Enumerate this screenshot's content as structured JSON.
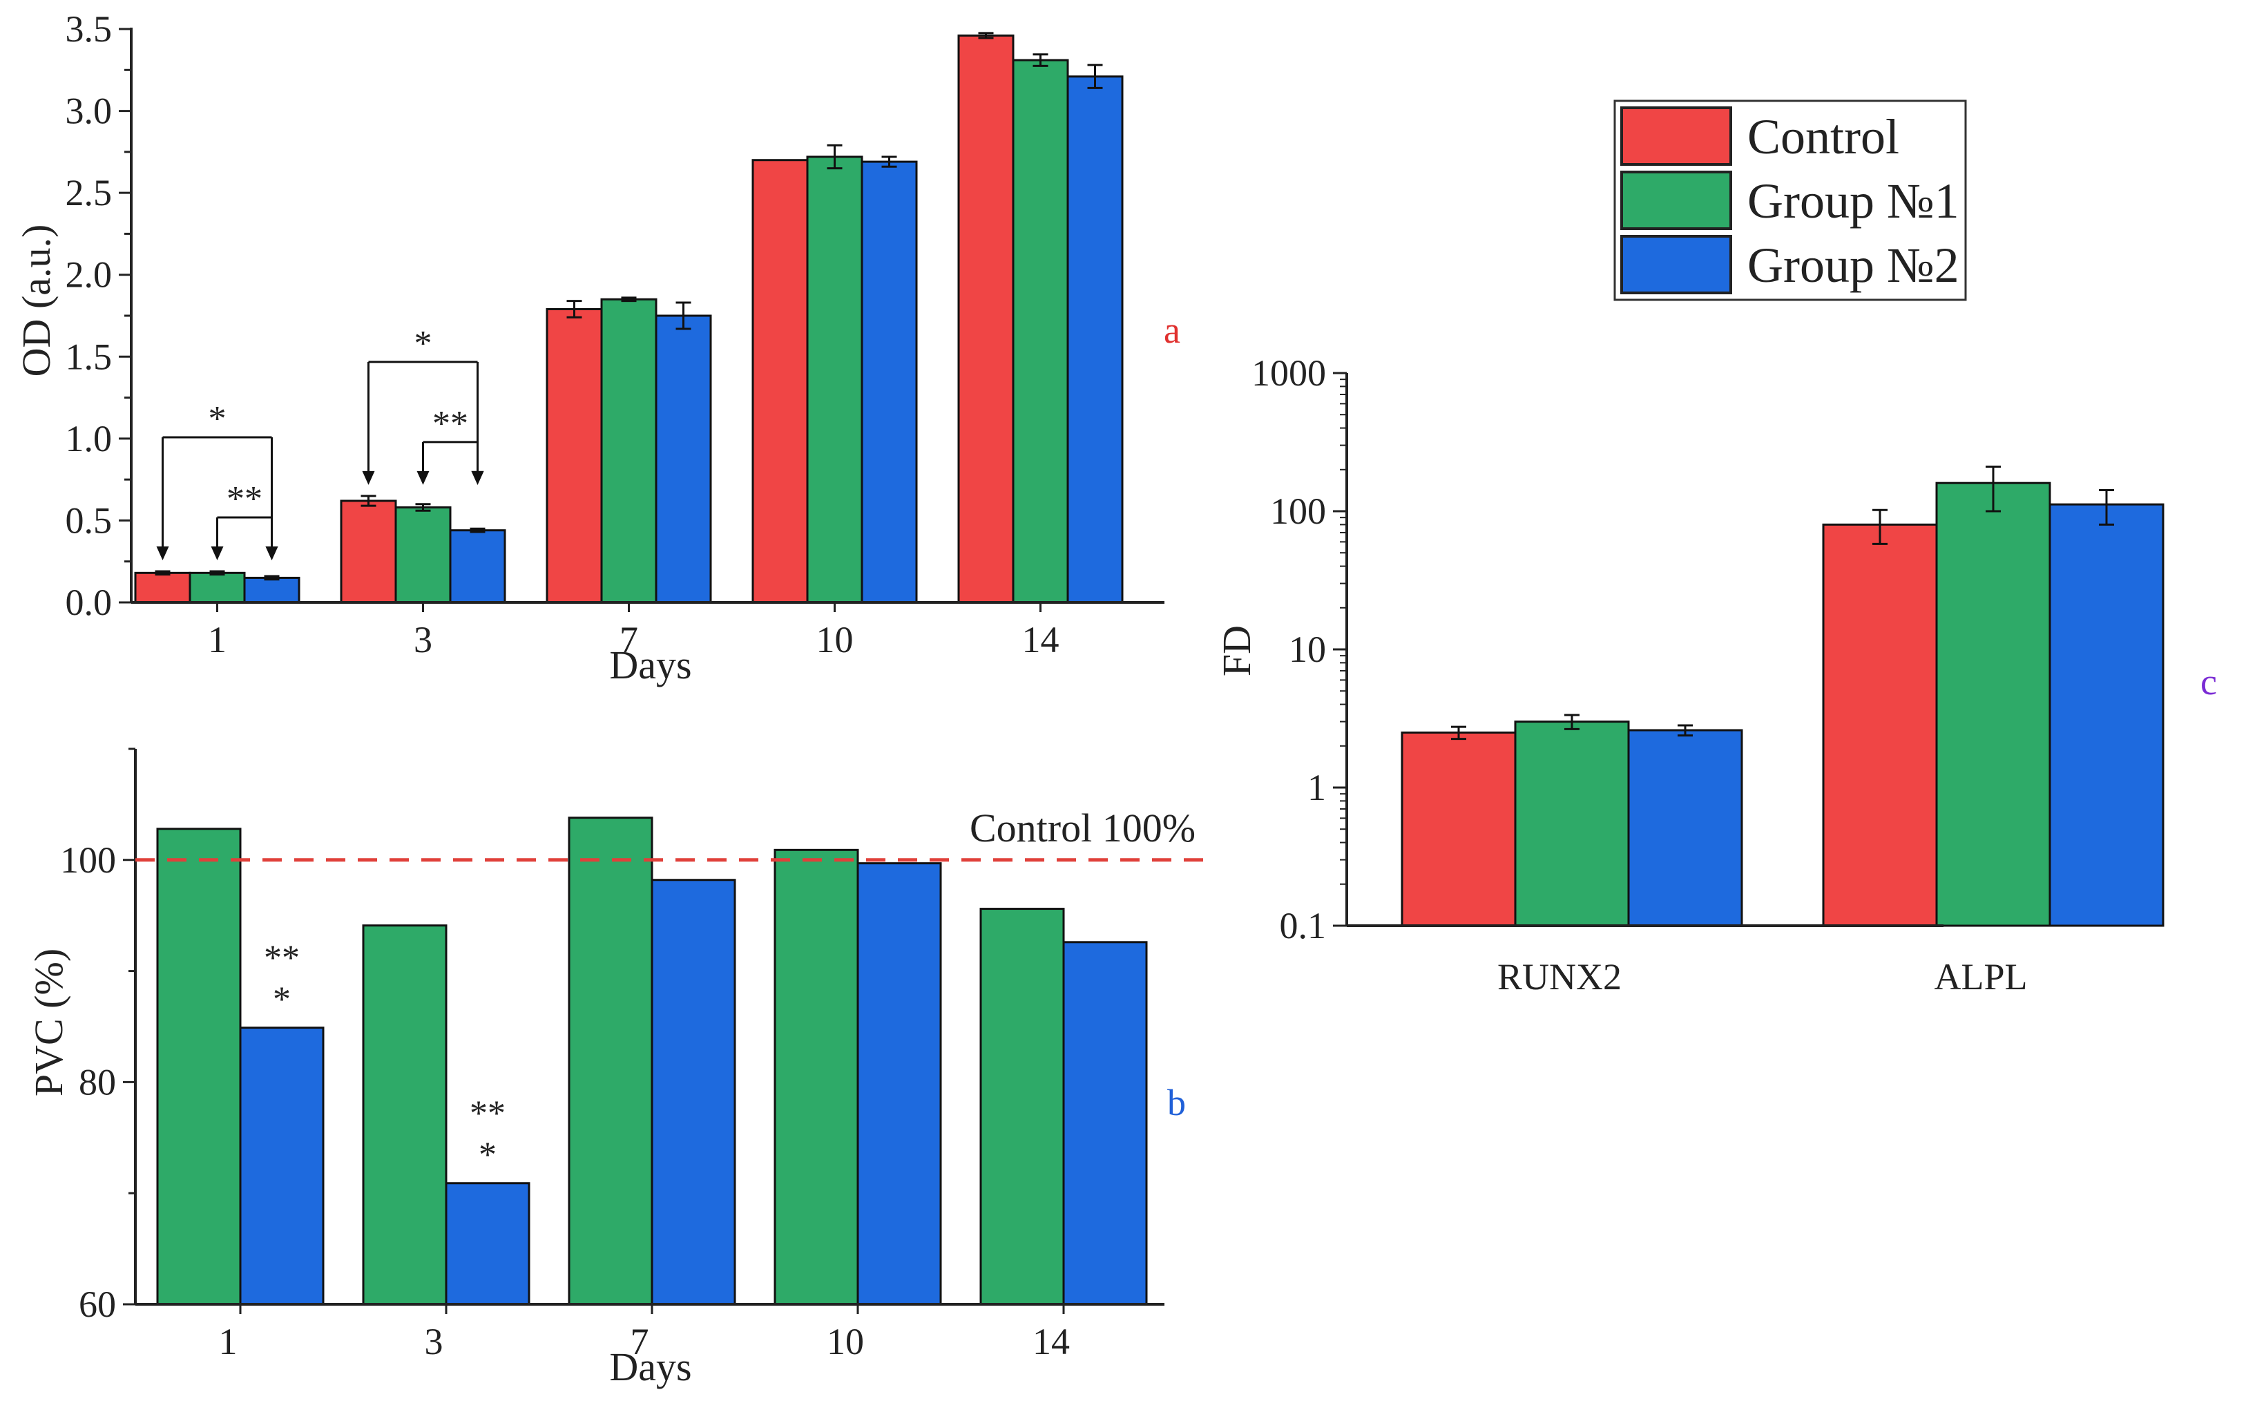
{
  "colors": {
    "control": "#F04545",
    "group1": "#2EAA68",
    "group2": "#1E6ADE",
    "axis": "#222222",
    "ref_line": "#E0403A",
    "letter_a": "#E0302E",
    "letter_b": "#2060D8",
    "letter_c": "#7A2BD4"
  },
  "legend": {
    "entries": [
      "Control",
      "Group №1",
      "Group №2"
    ]
  },
  "chart_data": [
    {
      "id": "a",
      "type": "bar",
      "panel_label": "a",
      "title": "",
      "xlabel": "Days",
      "ylabel": "OD (a.u.)",
      "categories": [
        "1",
        "3",
        "7",
        "10",
        "14"
      ],
      "ylim": [
        0,
        3.5
      ],
      "yticks": [
        "0.0",
        "0.5",
        "1.0",
        "1.5",
        "2.0",
        "2.5",
        "3.0",
        "3.5"
      ],
      "series": [
        {
          "name": "Control",
          "values": [
            0.18,
            0.62,
            1.79,
            2.7,
            3.46
          ],
          "errors": [
            0.01,
            0.03,
            0.05,
            0.0,
            0.015
          ]
        },
        {
          "name": "Group №1",
          "values": [
            0.18,
            0.58,
            1.85,
            2.72,
            3.31
          ],
          "errors": [
            0.01,
            0.02,
            0.01,
            0.07,
            0.035
          ]
        },
        {
          "name": "Group №2",
          "values": [
            0.15,
            0.44,
            1.75,
            2.69,
            3.21
          ],
          "errors": [
            0.01,
            0.01,
            0.08,
            0.03,
            0.07
          ]
        }
      ],
      "annotations": [
        {
          "category": "1",
          "type": "bracket",
          "from": "Control",
          "to": "Group №2",
          "label": "*"
        },
        {
          "category": "1",
          "type": "bracket",
          "from": "Group №1",
          "to": "Group №2",
          "label": "**"
        },
        {
          "category": "3",
          "type": "bracket",
          "from": "Control",
          "to": "Group №2",
          "label": "*"
        },
        {
          "category": "3",
          "type": "bracket",
          "from": "Group №1",
          "to": "Group №2",
          "label": "**"
        }
      ]
    },
    {
      "id": "b",
      "type": "bar",
      "panel_label": "b",
      "title": "",
      "xlabel": "Days",
      "ylabel": "PVC (%)",
      "categories": [
        "1",
        "3",
        "7",
        "10",
        "14"
      ],
      "ylim": [
        60,
        110
      ],
      "yticks": [
        "60",
        "80",
        "100"
      ],
      "reference_line": {
        "value": 100,
        "label": "Control 100%"
      },
      "series": [
        {
          "name": "Group №1",
          "values": [
            102.8,
            94.1,
            103.8,
            100.9,
            95.6
          ]
        },
        {
          "name": "Group №2",
          "values": [
            84.9,
            70.9,
            98.2,
            99.7,
            92.6
          ]
        }
      ],
      "annotations": [
        {
          "category": "1",
          "series": "Group №2",
          "lines": [
            "**",
            "*"
          ]
        },
        {
          "category": "3",
          "series": "Group №2",
          "lines": [
            "**",
            "*"
          ]
        }
      ]
    },
    {
      "id": "c",
      "type": "bar",
      "panel_label": "c",
      "title": "",
      "xlabel": "",
      "ylabel": "FD",
      "yscale": "log",
      "categories": [
        "RUNX2",
        "ALPL"
      ],
      "ylim": [
        0.1,
        1000
      ],
      "yticks": [
        "0.1",
        "1",
        "10",
        "100",
        "1000"
      ],
      "series": [
        {
          "name": "Control",
          "values": [
            2.5,
            80
          ],
          "err_low": [
            0.25,
            22
          ],
          "err_high": [
            0.25,
            22
          ]
        },
        {
          "name": "Group №1",
          "values": [
            3.0,
            160
          ],
          "err_low": [
            0.35,
            60
          ],
          "err_high": [
            0.35,
            50
          ]
        },
        {
          "name": "Group №2",
          "values": [
            2.6,
            112
          ],
          "err_low": [
            0.22,
            32
          ],
          "err_high": [
            0.22,
            30
          ]
        }
      ]
    }
  ]
}
